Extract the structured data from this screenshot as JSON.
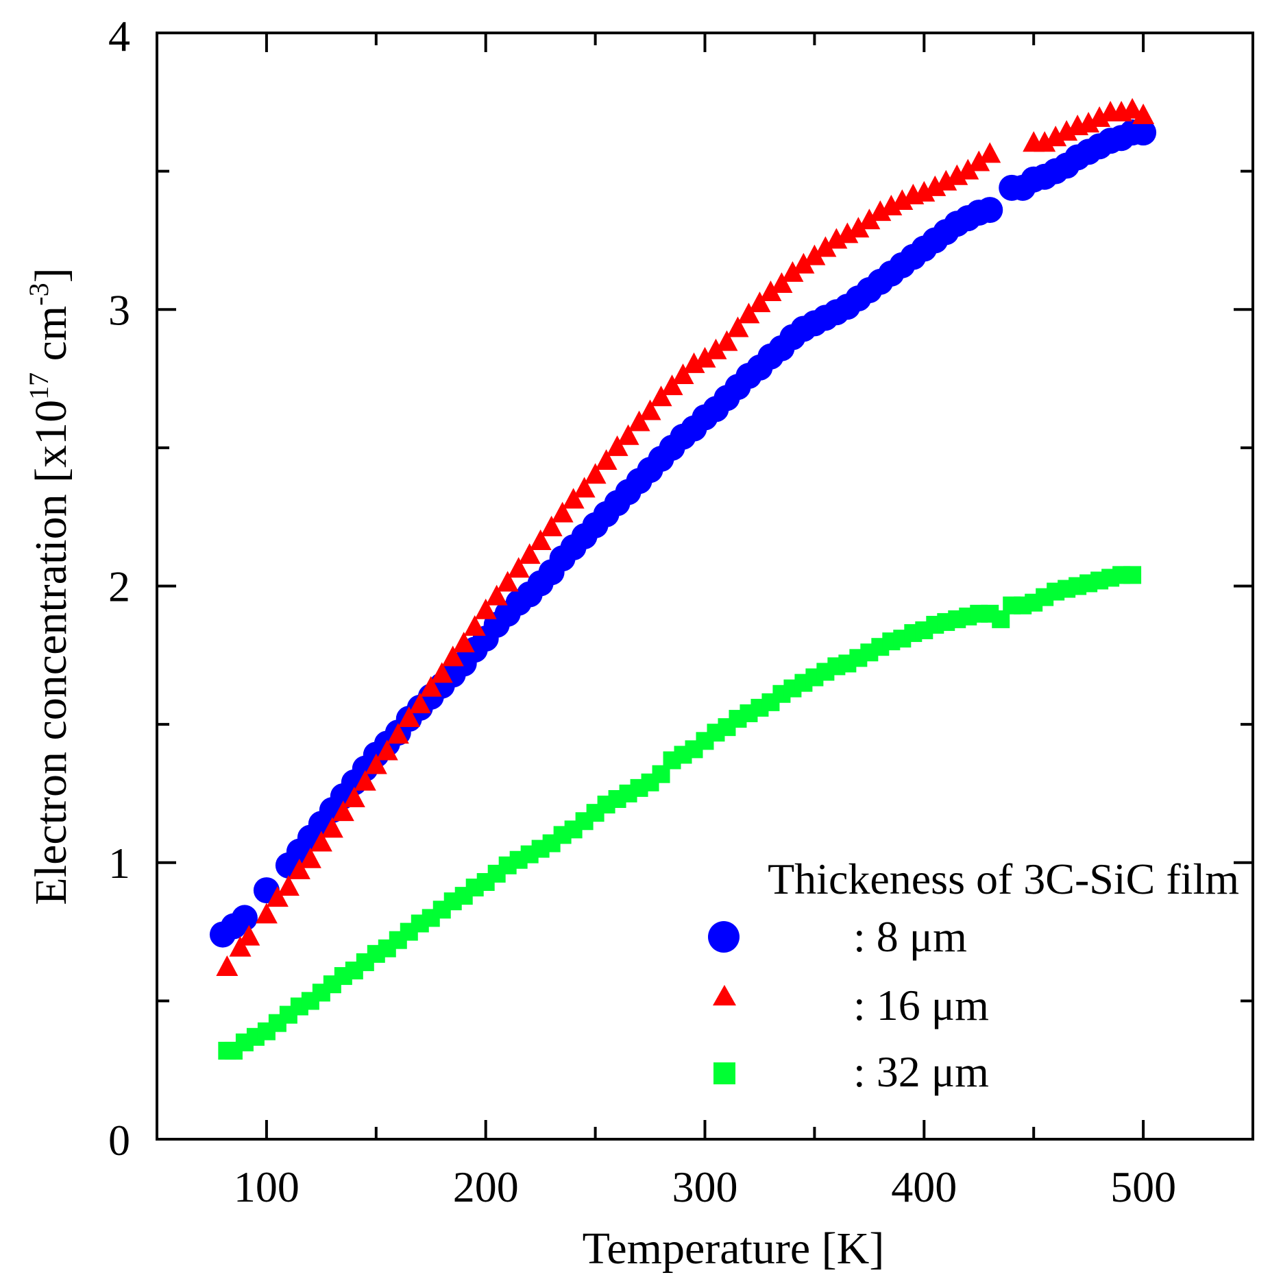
{
  "chart_data": {
    "type": "scatter",
    "title": "",
    "xlabel": "Temperature  [K]",
    "ylabel_main": "Electron concentration  [x10",
    "ylabel_exp": "17",
    "ylabel_unit": " cm",
    "ylabel_unit_exp": "-3",
    "ylabel_close": "]",
    "xlim": [
      50,
      550
    ],
    "ylim": [
      0,
      4
    ],
    "x_ticks": [
      100,
      200,
      300,
      400,
      500
    ],
    "x_tick_labels": [
      "100",
      "200",
      "300",
      "400",
      "500"
    ],
    "y_ticks": [
      0,
      1,
      2,
      3,
      4
    ],
    "y_tick_labels": [
      "0",
      "1",
      "2",
      "3",
      "4"
    ],
    "grid": false,
    "legend": {
      "title": "Thickeness of 3C-SiC film",
      "placement": "bottom-right",
      "entries": [
        {
          "marker": "circle",
          "color": "#0000ff",
          "label": ":   8 μm"
        },
        {
          "marker": "triangle",
          "color": "#ff0000",
          "label": ": 16 μm"
        },
        {
          "marker": "square",
          "color": "#00ff33",
          "label": ": 32 μm"
        }
      ]
    },
    "series": [
      {
        "marker": "circle",
        "color": "#0000ff",
        "points": [
          [
            80,
            0.74
          ],
          [
            85,
            0.77
          ],
          [
            90,
            0.8
          ],
          [
            100,
            0.9
          ],
          [
            110,
            0.99
          ],
          [
            115,
            1.04
          ],
          [
            120,
            1.09
          ],
          [
            125,
            1.14
          ],
          [
            130,
            1.19
          ],
          [
            135,
            1.24
          ],
          [
            140,
            1.29
          ],
          [
            145,
            1.34
          ],
          [
            150,
            1.39
          ],
          [
            155,
            1.43
          ],
          [
            160,
            1.47
          ],
          [
            165,
            1.52
          ],
          [
            170,
            1.56
          ],
          [
            175,
            1.6
          ],
          [
            180,
            1.64
          ],
          [
            185,
            1.68
          ],
          [
            190,
            1.72
          ],
          [
            195,
            1.77
          ],
          [
            200,
            1.81
          ],
          [
            205,
            1.86
          ],
          [
            210,
            1.9
          ],
          [
            215,
            1.94
          ],
          [
            220,
            1.97
          ],
          [
            225,
            2.01
          ],
          [
            230,
            2.05
          ],
          [
            235,
            2.1
          ],
          [
            240,
            2.14
          ],
          [
            245,
            2.18
          ],
          [
            250,
            2.22
          ],
          [
            255,
            2.26
          ],
          [
            260,
            2.3
          ],
          [
            265,
            2.34
          ],
          [
            270,
            2.38
          ],
          [
            275,
            2.42
          ],
          [
            280,
            2.46
          ],
          [
            285,
            2.5
          ],
          [
            290,
            2.54
          ],
          [
            295,
            2.57
          ],
          [
            300,
            2.61
          ],
          [
            305,
            2.64
          ],
          [
            310,
            2.68
          ],
          [
            315,
            2.72
          ],
          [
            320,
            2.76
          ],
          [
            325,
            2.79
          ],
          [
            330,
            2.83
          ],
          [
            335,
            2.86
          ],
          [
            340,
            2.9
          ],
          [
            345,
            2.93
          ],
          [
            350,
            2.95
          ],
          [
            355,
            2.97
          ],
          [
            360,
            2.99
          ],
          [
            365,
            3.01
          ],
          [
            370,
            3.04
          ],
          [
            375,
            3.07
          ],
          [
            380,
            3.1
          ],
          [
            385,
            3.13
          ],
          [
            390,
            3.16
          ],
          [
            395,
            3.19
          ],
          [
            400,
            3.22
          ],
          [
            405,
            3.25
          ],
          [
            410,
            3.28
          ],
          [
            415,
            3.31
          ],
          [
            420,
            3.33
          ],
          [
            425,
            3.35
          ],
          [
            430,
            3.36
          ],
          [
            440,
            3.44
          ],
          [
            445,
            3.44
          ],
          [
            450,
            3.47
          ],
          [
            455,
            3.48
          ],
          [
            460,
            3.5
          ],
          [
            465,
            3.52
          ],
          [
            470,
            3.55
          ],
          [
            475,
            3.57
          ],
          [
            480,
            3.59
          ],
          [
            485,
            3.61
          ],
          [
            490,
            3.62
          ],
          [
            495,
            3.64
          ],
          [
            500,
            3.64
          ]
        ]
      },
      {
        "marker": "triangle",
        "color": "#ff0000",
        "points": [
          [
            82,
            0.62
          ],
          [
            88,
            0.69
          ],
          [
            92,
            0.73
          ],
          [
            100,
            0.81
          ],
          [
            105,
            0.87
          ],
          [
            110,
            0.91
          ],
          [
            115,
            0.97
          ],
          [
            120,
            1.01
          ],
          [
            125,
            1.07
          ],
          [
            130,
            1.12
          ],
          [
            135,
            1.18
          ],
          [
            140,
            1.23
          ],
          [
            145,
            1.29
          ],
          [
            150,
            1.35
          ],
          [
            155,
            1.4
          ],
          [
            160,
            1.46
          ],
          [
            165,
            1.52
          ],
          [
            170,
            1.57
          ],
          [
            175,
            1.63
          ],
          [
            180,
            1.68
          ],
          [
            185,
            1.74
          ],
          [
            190,
            1.79
          ],
          [
            195,
            1.85
          ],
          [
            200,
            1.91
          ],
          [
            205,
            1.96
          ],
          [
            210,
            2.01
          ],
          [
            215,
            2.06
          ],
          [
            220,
            2.11
          ],
          [
            225,
            2.16
          ],
          [
            230,
            2.21
          ],
          [
            235,
            2.26
          ],
          [
            240,
            2.31
          ],
          [
            245,
            2.35
          ],
          [
            250,
            2.4
          ],
          [
            255,
            2.45
          ],
          [
            260,
            2.5
          ],
          [
            265,
            2.54
          ],
          [
            270,
            2.59
          ],
          [
            275,
            2.63
          ],
          [
            280,
            2.68
          ],
          [
            285,
            2.72
          ],
          [
            290,
            2.76
          ],
          [
            295,
            2.8
          ],
          [
            300,
            2.82
          ],
          [
            305,
            2.85
          ],
          [
            310,
            2.88
          ],
          [
            315,
            2.93
          ],
          [
            320,
            2.98
          ],
          [
            325,
            3.02
          ],
          [
            330,
            3.06
          ],
          [
            335,
            3.09
          ],
          [
            340,
            3.13
          ],
          [
            345,
            3.16
          ],
          [
            350,
            3.19
          ],
          [
            355,
            3.22
          ],
          [
            360,
            3.25
          ],
          [
            365,
            3.27
          ],
          [
            370,
            3.29
          ],
          [
            375,
            3.32
          ],
          [
            380,
            3.35
          ],
          [
            385,
            3.37
          ],
          [
            390,
            3.39
          ],
          [
            395,
            3.41
          ],
          [
            400,
            3.42
          ],
          [
            405,
            3.44
          ],
          [
            410,
            3.46
          ],
          [
            415,
            3.48
          ],
          [
            420,
            3.5
          ],
          [
            425,
            3.53
          ],
          [
            430,
            3.56
          ],
          [
            450,
            3.6
          ],
          [
            455,
            3.6
          ],
          [
            460,
            3.62
          ],
          [
            465,
            3.64
          ],
          [
            470,
            3.66
          ],
          [
            475,
            3.67
          ],
          [
            480,
            3.69
          ],
          [
            485,
            3.71
          ],
          [
            490,
            3.71
          ],
          [
            495,
            3.72
          ],
          [
            500,
            3.7
          ]
        ]
      },
      {
        "marker": "square",
        "color": "#00ff33",
        "points": [
          [
            82,
            0.32
          ],
          [
            85,
            0.32
          ],
          [
            90,
            0.35
          ],
          [
            95,
            0.37
          ],
          [
            100,
            0.39
          ],
          [
            105,
            0.42
          ],
          [
            110,
            0.45
          ],
          [
            115,
            0.48
          ],
          [
            120,
            0.5
          ],
          [
            125,
            0.53
          ],
          [
            130,
            0.56
          ],
          [
            135,
            0.59
          ],
          [
            140,
            0.61
          ],
          [
            145,
            0.64
          ],
          [
            150,
            0.67
          ],
          [
            155,
            0.69
          ],
          [
            160,
            0.72
          ],
          [
            165,
            0.75
          ],
          [
            170,
            0.78
          ],
          [
            175,
            0.8
          ],
          [
            180,
            0.83
          ],
          [
            185,
            0.86
          ],
          [
            190,
            0.88
          ],
          [
            195,
            0.91
          ],
          [
            200,
            0.93
          ],
          [
            205,
            0.96
          ],
          [
            210,
            0.99
          ],
          [
            215,
            1.01
          ],
          [
            220,
            1.03
          ],
          [
            225,
            1.05
          ],
          [
            230,
            1.07
          ],
          [
            235,
            1.1
          ],
          [
            240,
            1.12
          ],
          [
            245,
            1.15
          ],
          [
            250,
            1.18
          ],
          [
            255,
            1.21
          ],
          [
            260,
            1.23
          ],
          [
            265,
            1.25
          ],
          [
            270,
            1.27
          ],
          [
            275,
            1.29
          ],
          [
            280,
            1.32
          ],
          [
            285,
            1.37
          ],
          [
            290,
            1.39
          ],
          [
            295,
            1.41
          ],
          [
            300,
            1.44
          ],
          [
            305,
            1.47
          ],
          [
            310,
            1.49
          ],
          [
            315,
            1.52
          ],
          [
            320,
            1.54
          ],
          [
            325,
            1.56
          ],
          [
            330,
            1.58
          ],
          [
            335,
            1.61
          ],
          [
            340,
            1.63
          ],
          [
            345,
            1.65
          ],
          [
            350,
            1.67
          ],
          [
            355,
            1.69
          ],
          [
            360,
            1.71
          ],
          [
            365,
            1.72
          ],
          [
            370,
            1.74
          ],
          [
            375,
            1.76
          ],
          [
            380,
            1.78
          ],
          [
            385,
            1.8
          ],
          [
            390,
            1.81
          ],
          [
            395,
            1.83
          ],
          [
            400,
            1.84
          ],
          [
            405,
            1.86
          ],
          [
            410,
            1.87
          ],
          [
            415,
            1.88
          ],
          [
            420,
            1.89
          ],
          [
            425,
            1.9
          ],
          [
            430,
            1.9
          ],
          [
            435,
            1.88
          ],
          [
            440,
            1.93
          ],
          [
            445,
            1.93
          ],
          [
            450,
            1.94
          ],
          [
            455,
            1.96
          ],
          [
            460,
            1.98
          ],
          [
            465,
            1.99
          ],
          [
            470,
            2.0
          ],
          [
            475,
            2.01
          ],
          [
            480,
            2.02
          ],
          [
            485,
            2.03
          ],
          [
            490,
            2.04
          ],
          [
            495,
            2.04
          ]
        ]
      }
    ]
  }
}
